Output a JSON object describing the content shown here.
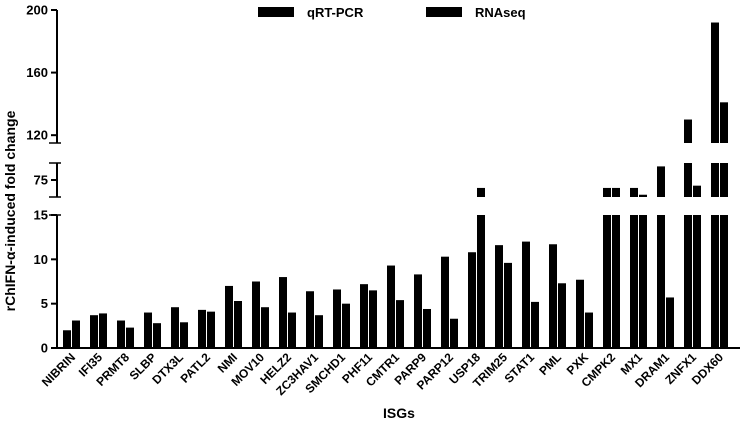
{
  "chart_data": {
    "type": "bar",
    "xlabel": "ISGs",
    "ylabel": "rChIFN-α-induced fold change",
    "legend_position": "top",
    "grid": false,
    "y_axis": "broken",
    "y_segments": [
      {
        "range": [
          0,
          15
        ],
        "ticks": [
          "0",
          "5",
          "10",
          "15"
        ]
      },
      {
        "range": [
          60,
          90
        ],
        "ticks": [
          "75"
        ]
      },
      {
        "range": [
          115,
          200
        ],
        "ticks": [
          "120",
          "160",
          "200"
        ]
      }
    ],
    "colors": {
      "bar": "#000000"
    },
    "categories": [
      "NIBRIN",
      "IFI35",
      "PRMT8",
      "SLBP",
      "DTX3L",
      "PATL2",
      "NMI",
      "MOV10",
      "HELZ2",
      "ZC3HAV1",
      "SMCHD1",
      "PHF11",
      "CMTR1",
      "PARP9",
      "PARP12",
      "USP18",
      "TRIM25",
      "STAT1",
      "PML",
      "PXK",
      "CMPK2",
      "MX1",
      "DRAM1",
      "ZNFX1",
      "DDX60"
    ],
    "series": [
      {
        "name": "qRT-PCR",
        "values": [
          2.0,
          3.7,
          3.1,
          4.0,
          4.6,
          4.3,
          7.0,
          7.5,
          8.0,
          6.4,
          6.6,
          7.2,
          9.3,
          8.3,
          10.3,
          10.8,
          11.6,
          12.0,
          11.7,
          7.7,
          68,
          68,
          87,
          130,
          192
        ]
      },
      {
        "name": "RNAseq",
        "values": [
          3.1,
          3.9,
          2.3,
          2.8,
          2.9,
          4.1,
          5.3,
          4.6,
          4.0,
          3.7,
          5.0,
          6.5,
          5.4,
          4.4,
          3.3,
          68,
          9.6,
          5.2,
          7.3,
          4.0,
          68,
          62,
          5.7,
          70,
          141
        ]
      }
    ]
  }
}
